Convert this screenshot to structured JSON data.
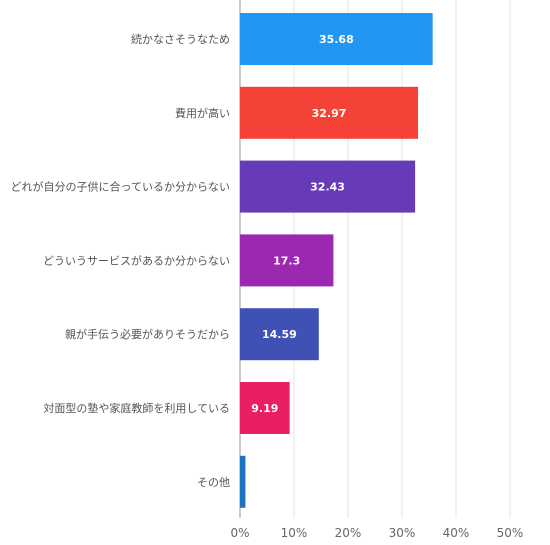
{
  "chart_data": {
    "type": "bar",
    "orientation": "horizontal",
    "categories": [
      "続かなさそうなため",
      "費用が高い",
      "どれが自分の子供に合っているか分からない",
      "どういうサービスがあるか分からない",
      "親が手伝う必要がありそうだから",
      "対面型の塾や家庭教師を利用している",
      "その他"
    ],
    "values": [
      35.68,
      32.97,
      32.43,
      17.3,
      14.59,
      9.19,
      1.0
    ],
    "value_labels": [
      "35.68",
      "32.97",
      "32.43",
      "17.3",
      "14.59",
      "9.19",
      ""
    ],
    "colors": [
      "#2196f3",
      "#f44336",
      "#673ab7",
      "#9c27b0",
      "#3f51b5",
      "#e91e63",
      "#1e73be"
    ],
    "xlim": [
      0,
      50
    ],
    "x_ticks": [
      0,
      10,
      20,
      30,
      40,
      50
    ],
    "x_tick_labels": [
      "0%",
      "10%",
      "20%",
      "30%",
      "40%",
      "50%"
    ],
    "grid": true,
    "legend": "none",
    "title": "",
    "xlabel": "",
    "ylabel": ""
  }
}
